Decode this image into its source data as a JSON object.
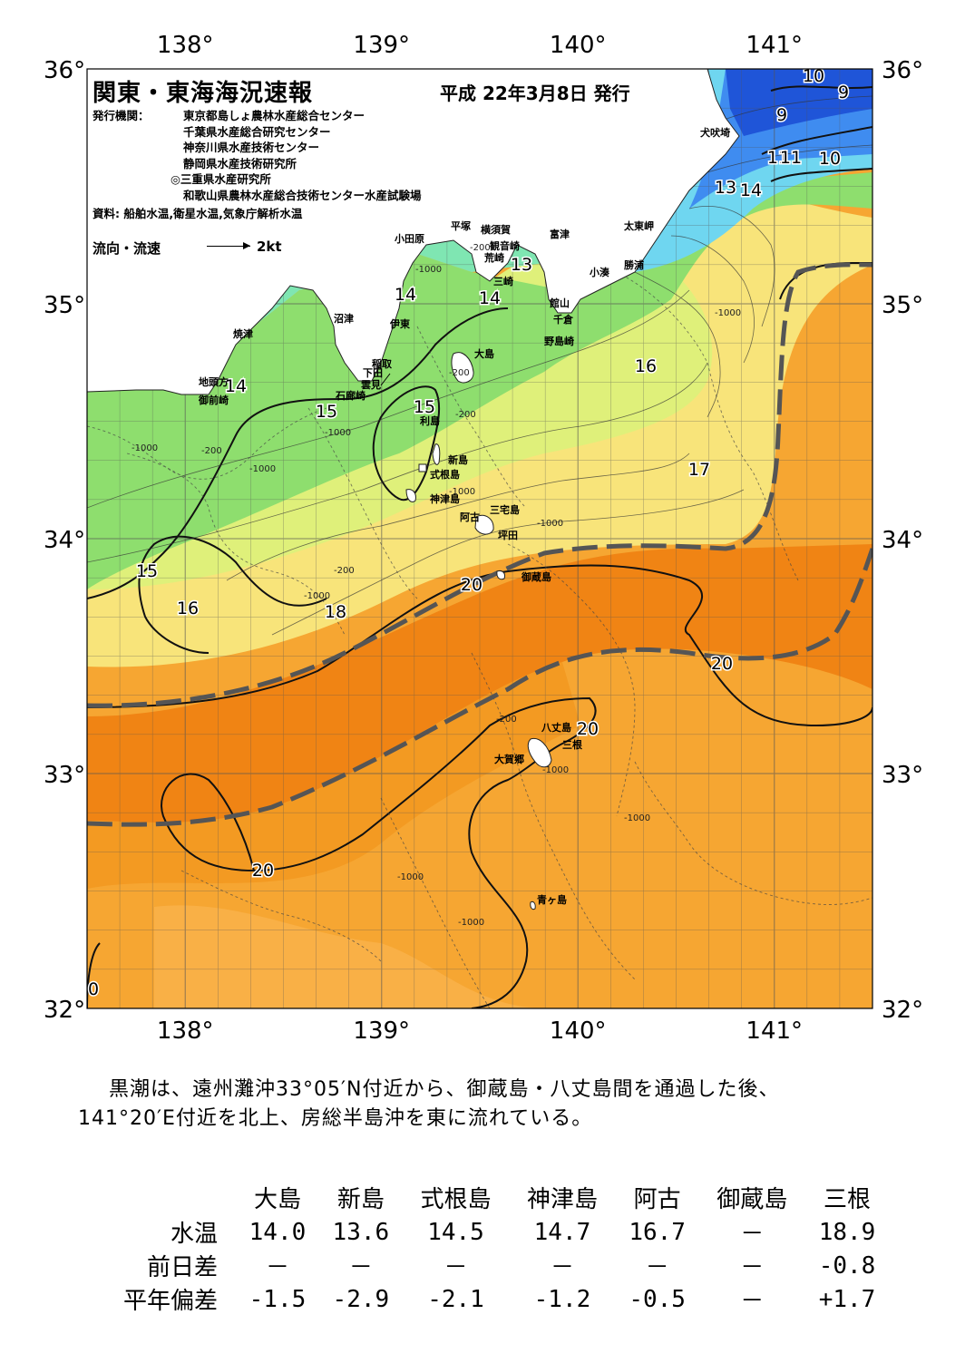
{
  "map": {
    "title": "関東・東海海況速報",
    "date": "平成 22年3月8日 発行",
    "issuer_label": "発行機関：",
    "issuers": [
      "東京都島しょ農林水産総合センター",
      "千葉県水産総合研究センター",
      "神奈川県水産技術センター",
      "静岡県水産技術研究所",
      "◎三重県水産研究所",
      "和歌山県農林水産総合技術センター水産試験場"
    ],
    "sources": "資料: 船舶水温,衛星水温,気象庁解析水温",
    "flow_legend_label": "流向・流速",
    "flow_legend_unit": "2kt",
    "lon_ticks": [
      "138",
      "139",
      "140",
      "141"
    ],
    "lat_ticks": [
      "36",
      "35",
      "34",
      "33",
      "32"
    ],
    "degree_symbol": "°",
    "lon_range": [
      137.5,
      141.5
    ],
    "lat_range": [
      32,
      36
    ],
    "colors": {
      "cold_deep": "#1f55d8",
      "cold": "#3f8cf0",
      "cool": "#6fd6f0",
      "mild": "#7fe6b2",
      "green": "#8ede6e",
      "yellowgreen": "#dff07a",
      "yellow": "#f8e47a",
      "orange_light": "#f9b046",
      "orange": "#f39a22",
      "orange_dark": "#f08414",
      "land": "#ffffff",
      "kuroshio_axis": "#555555"
    },
    "isotherm_labels": [
      "10",
      "9",
      "9",
      "11",
      "11",
      "10",
      "13",
      "14",
      "13",
      "14",
      "14",
      "14",
      "15",
      "15",
      "16",
      "17",
      "15",
      "16",
      "18",
      "20",
      "20",
      "20",
      "20",
      "0"
    ],
    "depth_labels": [
      "-1000",
      "-200",
      "-1000",
      "-200",
      "-200",
      "-1000",
      "-1000",
      "-200",
      "-1000",
      "-200",
      "-1000",
      "-1000",
      "-200",
      "-1000",
      "-1000",
      "-1000",
      "-1000",
      "-1000"
    ],
    "places": [
      "犬吠埼",
      "太東岬",
      "勝浦",
      "小湊",
      "富津",
      "観音崎",
      "横須賀",
      "平塚",
      "荒崎",
      "三崎",
      "館山",
      "千倉",
      "野島崎",
      "小田原",
      "沼津",
      "伊東",
      "稲取",
      "下田",
      "雲見",
      "石廊崎",
      "焼津",
      "地頭方",
      "御前崎",
      "大島",
      "利島",
      "新島",
      "式根島",
      "神津島",
      "三宅島",
      "阿古",
      "坪田",
      "御蔵島",
      "八丈島",
      "三根",
      "大賀郷",
      "青ヶ島"
    ]
  },
  "summary": {
    "line1": "黒潮は、遠州灘沖33°05′N付近から、御蔵島・八丈島間を通過した後、",
    "line2": "141°20′E付近を北上、房総半島沖を東に流れている。"
  },
  "table": {
    "columns": [
      "大島",
      "新島",
      "式根島",
      "神津島",
      "阿古",
      "御蔵島",
      "三根"
    ],
    "rows": [
      {
        "label": "水温",
        "values": [
          "14.0",
          "13.6",
          "14.5",
          "14.7",
          "16.7",
          "－",
          "18.9"
        ]
      },
      {
        "label": "前日差",
        "values": [
          "－",
          "－",
          "－",
          "－",
          "－",
          "－",
          "-0.8"
        ]
      },
      {
        "label": "平年偏差",
        "values": [
          "-1.5",
          "-2.9",
          "-2.1",
          "-1.2",
          "-0.5",
          "－",
          "+1.7"
        ]
      }
    ]
  }
}
